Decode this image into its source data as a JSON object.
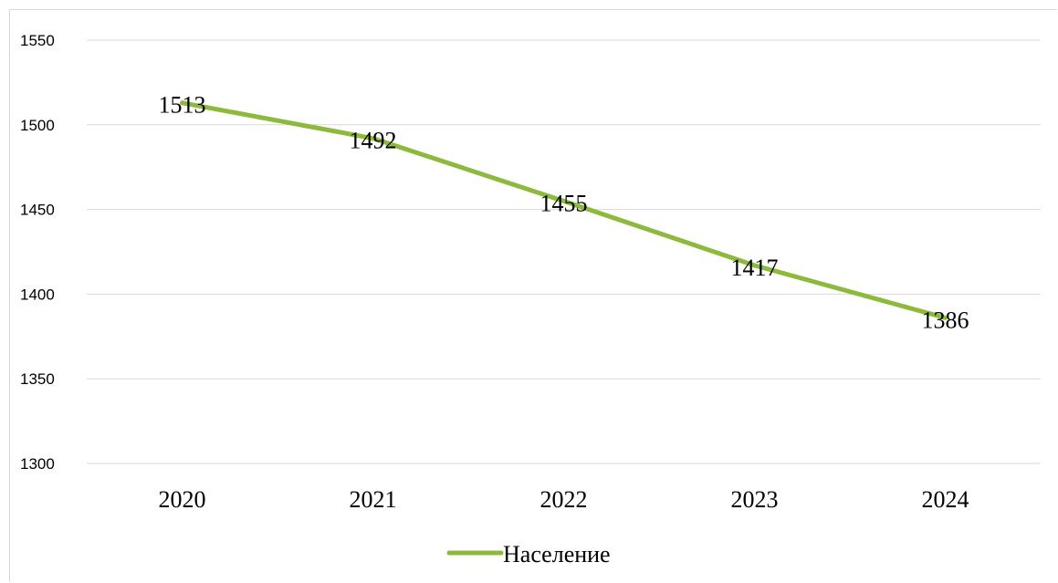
{
  "chart_data": {
    "type": "line",
    "categories": [
      "2020",
      "2021",
      "2022",
      "2023",
      "2024"
    ],
    "series": [
      {
        "name": "Население",
        "values": [
          1513,
          1492,
          1455,
          1417,
          1386
        ],
        "color": "#8dba3d"
      }
    ],
    "y_ticks": [
      "1300",
      "1350",
      "1400",
      "1450",
      "1500",
      "1550"
    ],
    "ylim": [
      1300,
      1550
    ],
    "grid": true,
    "legend_position": "bottom",
    "data_labels": [
      "1513",
      "1492",
      "1455",
      "1417",
      "1386"
    ]
  }
}
